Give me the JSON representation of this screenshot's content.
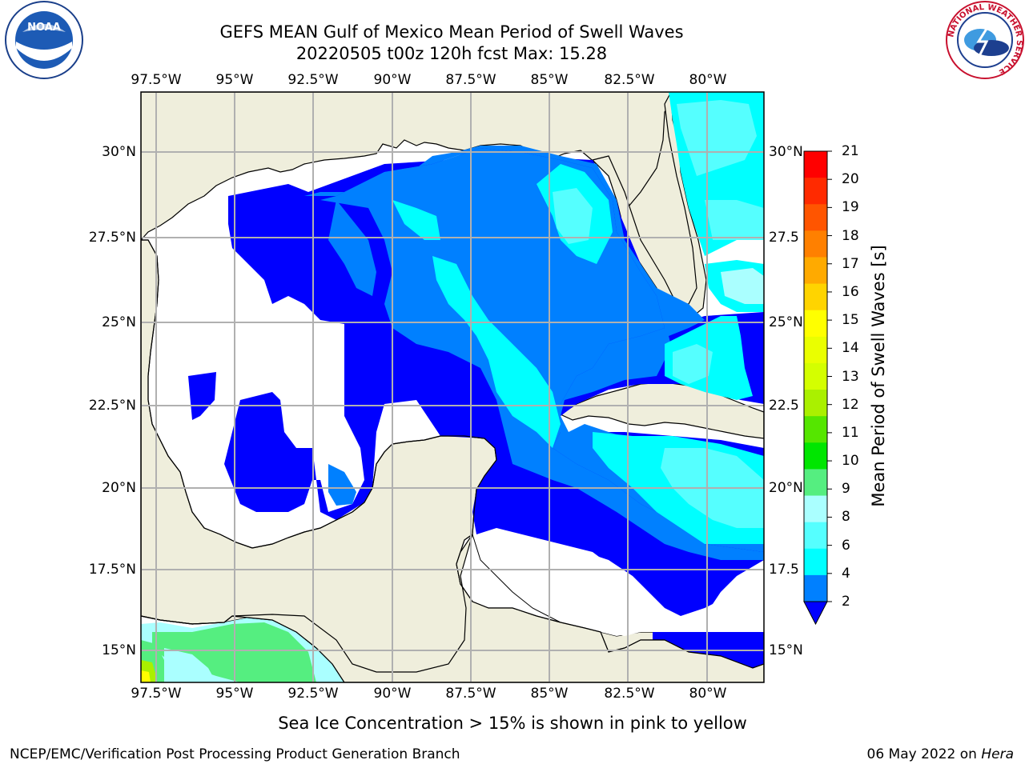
{
  "header": {
    "title_line1": "GEFS MEAN Gulf of Mexico Mean Period of Swell Waves",
    "title_line2": "20220505 t00z 120h fcst   Max: 15.28"
  },
  "logos": {
    "left": {
      "name": "noaa-logo",
      "text": "NOAA",
      "ring_text": "NATIONAL OCEANIC AND ATMOSPHERIC ADMINISTRATION · U.S. DEPARTMENT OF COMMERCE"
    },
    "right": {
      "name": "nws-logo",
      "ring_text": "NATIONAL WEATHER SERVICE"
    }
  },
  "map": {
    "lon_labels": [
      "97.5°W",
      "95°W",
      "92.5°W",
      "90°W",
      "87.5°W",
      "85°W",
      "82.5°W",
      "80°W"
    ],
    "lat_labels_left": [
      "30°N",
      "27.5°N",
      "25°N",
      "22.5°N",
      "20°N",
      "17.5°N",
      "15°N"
    ],
    "lat_labels_right": [
      "30°N",
      "27.5",
      "25°N",
      "22.5",
      "20°N",
      "17.5",
      "15°N"
    ],
    "land_color": "#efeedc",
    "ocean_nodata_color": "#ffffff"
  },
  "colorbar": {
    "label": "Mean Period of Swell Waves [s]",
    "ticks": [
      "21",
      "20",
      "19",
      "18",
      "17",
      "16",
      "15",
      "14",
      "13",
      "12",
      "11",
      "10",
      "9",
      "8",
      "6",
      "4",
      "2"
    ],
    "colors": [
      "#ff0000",
      "#ff2a00",
      "#ff5500",
      "#ff8000",
      "#ffaa00",
      "#ffd400",
      "#ffff00",
      "#eaff00",
      "#d4ff00",
      "#aaf000",
      "#55e600",
      "#00e600",
      "#55ee80",
      "#aaffff",
      "#55ffff",
      "#00ffff",
      "#0080ff"
    ],
    "extend_color": "#0000ff"
  },
  "note": "Sea Ice Concentration > 15% is shown in pink to yellow",
  "footer": {
    "left": "NCEP/EMC/Verification Post Processing Product Generation Branch",
    "right_date": "06 May 2022 on ",
    "right_host": "Hera"
  }
}
